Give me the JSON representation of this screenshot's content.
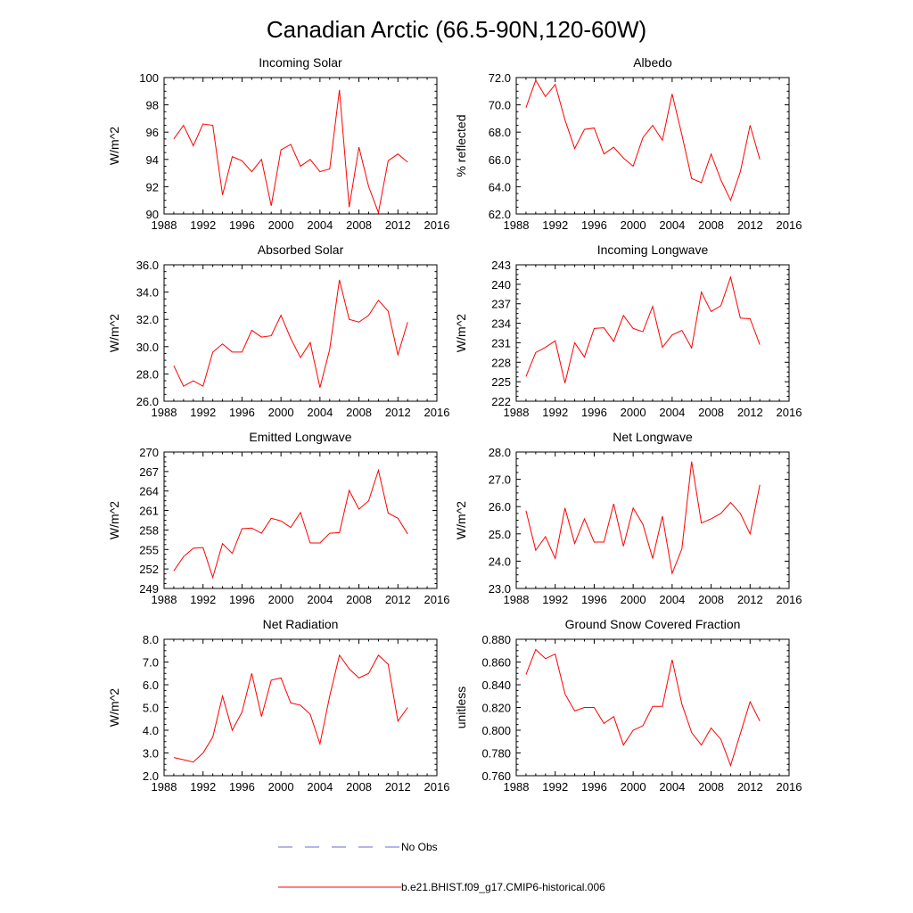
{
  "page_title": "Canadian Arctic (66.5-90N,120-60W)",
  "legend": [
    {
      "label": "No Obs",
      "color": "#6a6ad0",
      "dash": true
    },
    {
      "label": "b.e21.BHIST.f09_g17.CMIP6-historical.006",
      "color": "#ff0000",
      "dash": false
    }
  ],
  "chart_data": [
    {
      "type": "line",
      "title": "Incoming Solar",
      "ylabel": "W/m^2",
      "xlim": [
        1988,
        2016
      ],
      "xticks": [
        1988,
        1992,
        1996,
        2000,
        2004,
        2008,
        2012,
        2016
      ],
      "xticklabels": [
        "1988",
        "1992",
        "1996",
        "2000",
        "2004",
        "2008",
        "2012",
        "2016"
      ],
      "ylim": [
        90,
        100
      ],
      "yticks": [
        90,
        92,
        94,
        96,
        98,
        100
      ],
      "yticklabels": [
        "90",
        "92",
        "94",
        "96",
        "98",
        "100"
      ],
      "grid": false,
      "x": [
        1989,
        1990,
        1991,
        1992,
        1993,
        1994,
        1995,
        1996,
        1997,
        1998,
        1999,
        2000,
        2001,
        2002,
        2003,
        2004,
        2005,
        2006,
        2007,
        2008,
        2009,
        2010,
        2011,
        2012,
        2013
      ],
      "series": [
        {
          "name": "b.e21.BHIST.f09_g17.CMIP6-historical.006",
          "color": "#ff0000",
          "values": [
            95.5,
            96.5,
            95.0,
            96.6,
            96.5,
            91.4,
            94.2,
            93.9,
            93.1,
            94.0,
            90.6,
            94.7,
            95.1,
            93.5,
            94.0,
            93.1,
            93.3,
            99.1,
            90.5,
            94.9,
            92.0,
            90.1,
            93.9,
            94.4,
            93.8
          ]
        }
      ]
    },
    {
      "type": "line",
      "title": "Albedo",
      "ylabel": "% reflected",
      "xlim": [
        1988,
        2016
      ],
      "xticks": [
        1988,
        1992,
        1996,
        2000,
        2004,
        2008,
        2012,
        2016
      ],
      "xticklabels": [
        "1988",
        "1992",
        "1996",
        "2000",
        "2004",
        "2008",
        "2012",
        "2016"
      ],
      "ylim": [
        62,
        72
      ],
      "yticks": [
        62,
        64,
        66,
        68,
        70,
        72
      ],
      "yticklabels": [
        "62.0",
        "64.0",
        "66.0",
        "68.0",
        "70.0",
        "72.0"
      ],
      "grid": false,
      "x": [
        1989,
        1990,
        1991,
        1992,
        1993,
        1994,
        1995,
        1996,
        1997,
        1998,
        1999,
        2000,
        2001,
        2002,
        2003,
        2004,
        2005,
        2006,
        2007,
        2008,
        2009,
        2010,
        2011,
        2012,
        2013
      ],
      "series": [
        {
          "name": "b.e21.BHIST.f09_g17.CMIP6-historical.006",
          "color": "#ff0000",
          "values": [
            69.8,
            71.8,
            70.6,
            71.5,
            68.9,
            66.8,
            68.2,
            68.3,
            66.4,
            66.9,
            66.1,
            65.5,
            67.6,
            68.5,
            67.4,
            70.8,
            67.8,
            64.6,
            64.3,
            66.4,
            64.5,
            63.0,
            65.1,
            68.5,
            66.0
          ]
        }
      ]
    },
    {
      "type": "line",
      "title": "Absorbed Solar",
      "ylabel": "W/m^2",
      "xlim": [
        1988,
        2016
      ],
      "xticks": [
        1988,
        1992,
        1996,
        2000,
        2004,
        2008,
        2012,
        2016
      ],
      "xticklabels": [
        "1988",
        "1992",
        "1996",
        "2000",
        "2004",
        "2008",
        "2012",
        "2016"
      ],
      "ylim": [
        26,
        36
      ],
      "yticks": [
        26,
        28,
        30,
        32,
        34,
        36
      ],
      "yticklabels": [
        "26.0",
        "28.0",
        "30.0",
        "32.0",
        "34.0",
        "36.0"
      ],
      "grid": false,
      "x": [
        1989,
        1990,
        1991,
        1992,
        1993,
        1994,
        1995,
        1996,
        1997,
        1998,
        1999,
        2000,
        2001,
        2002,
        2003,
        2004,
        2005,
        2006,
        2007,
        2008,
        2009,
        2010,
        2011,
        2012,
        2013
      ],
      "series": [
        {
          "name": "b.e21.BHIST.f09_g17.CMIP6-historical.006",
          "color": "#ff0000",
          "values": [
            28.6,
            27.1,
            27.5,
            27.1,
            29.6,
            30.2,
            29.6,
            29.6,
            31.2,
            30.7,
            30.8,
            32.3,
            30.6,
            29.2,
            30.3,
            27.0,
            29.8,
            34.9,
            32.0,
            31.8,
            32.3,
            33.4,
            32.6,
            29.4,
            31.8
          ]
        }
      ]
    },
    {
      "type": "line",
      "title": "Incoming Longwave",
      "ylabel": "W/m^2",
      "xlim": [
        1988,
        2016
      ],
      "xticks": [
        1988,
        1992,
        1996,
        2000,
        2004,
        2008,
        2012,
        2016
      ],
      "xticklabels": [
        "1988",
        "1992",
        "1996",
        "2000",
        "2004",
        "2008",
        "2012",
        "2016"
      ],
      "ylim": [
        222,
        243
      ],
      "yticks": [
        222,
        225,
        228,
        231,
        234,
        237,
        240,
        243
      ],
      "yticklabels": [
        "222",
        "225",
        "228",
        "231",
        "234",
        "237",
        "240",
        "243"
      ],
      "grid": false,
      "x": [
        1989,
        1990,
        1991,
        1992,
        1993,
        1994,
        1995,
        1996,
        1997,
        1998,
        1999,
        2000,
        2001,
        2002,
        2003,
        2004,
        2005,
        2006,
        2007,
        2008,
        2009,
        2010,
        2011,
        2012,
        2013
      ],
      "series": [
        {
          "name": "b.e21.BHIST.f09_g17.CMIP6-historical.006",
          "color": "#ff0000",
          "values": [
            225.8,
            229.5,
            230.3,
            231.3,
            224.8,
            231.0,
            228.8,
            233.2,
            233.3,
            231.2,
            235.2,
            233.2,
            232.7,
            236.6,
            230.3,
            232.2,
            232.9,
            230.2,
            238.8,
            235.8,
            236.7,
            241.1,
            234.8,
            234.7,
            230.7
          ]
        }
      ]
    },
    {
      "type": "line",
      "title": "Emitted Longwave",
      "ylabel": "W/m^2",
      "xlim": [
        1988,
        2016
      ],
      "xticks": [
        1988,
        1992,
        1996,
        2000,
        2004,
        2008,
        2012,
        2016
      ],
      "xticklabels": [
        "1988",
        "1992",
        "1996",
        "2000",
        "2004",
        "2008",
        "2012",
        "2016"
      ],
      "ylim": [
        249,
        270
      ],
      "yticks": [
        249,
        252,
        255,
        258,
        261,
        264,
        267,
        270
      ],
      "yticklabels": [
        "249",
        "252",
        "255",
        "258",
        "261",
        "264",
        "267",
        "270"
      ],
      "grid": false,
      "x": [
        1989,
        1990,
        1991,
        1992,
        1993,
        1994,
        1995,
        1996,
        1997,
        1998,
        1999,
        2000,
        2001,
        2002,
        2003,
        2004,
        2005,
        2006,
        2007,
        2008,
        2009,
        2010,
        2011,
        2012,
        2013
      ],
      "series": [
        {
          "name": "b.e21.BHIST.f09_g17.CMIP6-historical.006",
          "color": "#ff0000",
          "values": [
            251.7,
            253.9,
            255.2,
            255.3,
            250.7,
            255.9,
            254.4,
            258.2,
            258.3,
            257.5,
            259.8,
            259.4,
            258.4,
            260.7,
            256.0,
            256.0,
            257.5,
            257.6,
            264.1,
            261.2,
            262.5,
            267.2,
            260.6,
            259.8,
            257.4
          ]
        }
      ]
    },
    {
      "type": "line",
      "title": "Net Longwave",
      "ylabel": "W/m^2",
      "xlim": [
        1988,
        2016
      ],
      "xticks": [
        1988,
        1992,
        1996,
        2000,
        2004,
        2008,
        2012,
        2016
      ],
      "xticklabels": [
        "1988",
        "1992",
        "1996",
        "2000",
        "2004",
        "2008",
        "2012",
        "2016"
      ],
      "ylim": [
        23,
        28
      ],
      "yticks": [
        23,
        24,
        25,
        26,
        27,
        28
      ],
      "yticklabels": [
        "23.0",
        "24.0",
        "25.0",
        "26.0",
        "27.0",
        "28.0"
      ],
      "grid": false,
      "x": [
        1989,
        1990,
        1991,
        1992,
        1993,
        1994,
        1995,
        1996,
        1997,
        1998,
        1999,
        2000,
        2001,
        2002,
        2003,
        2004,
        2005,
        2006,
        2007,
        2008,
        2009,
        2010,
        2011,
        2012,
        2013
      ],
      "series": [
        {
          "name": "b.e21.BHIST.f09_g17.CMIP6-historical.006",
          "color": "#ff0000",
          "values": [
            25.85,
            24.4,
            24.9,
            24.1,
            25.95,
            24.65,
            25.55,
            24.7,
            24.7,
            26.1,
            24.55,
            25.95,
            25.35,
            24.1,
            25.65,
            23.55,
            24.45,
            27.65,
            25.4,
            25.55,
            25.75,
            26.15,
            25.75,
            25.0,
            26.8
          ]
        }
      ]
    },
    {
      "type": "line",
      "title": "Net Radiation",
      "ylabel": "W/m^2",
      "xlim": [
        1988,
        2016
      ],
      "xticks": [
        1988,
        1992,
        1996,
        2000,
        2004,
        2008,
        2012,
        2016
      ],
      "xticklabels": [
        "1988",
        "1992",
        "1996",
        "2000",
        "2004",
        "2008",
        "2012",
        "2016"
      ],
      "ylim": [
        2,
        8
      ],
      "yticks": [
        2,
        3,
        4,
        5,
        6,
        7,
        8
      ],
      "yticklabels": [
        "2.0",
        "3.0",
        "4.0",
        "5.0",
        "6.0",
        "7.0",
        "8.0"
      ],
      "grid": false,
      "x": [
        1989,
        1990,
        1991,
        1992,
        1993,
        1994,
        1995,
        1996,
        1997,
        1998,
        1999,
        2000,
        2001,
        2002,
        2003,
        2004,
        2005,
        2006,
        2007,
        2008,
        2009,
        2010,
        2011,
        2012,
        2013
      ],
      "series": [
        {
          "name": "b.e21.BHIST.f09_g17.CMIP6-historical.006",
          "color": "#ff0000",
          "values": [
            2.8,
            2.7,
            2.6,
            3.0,
            3.7,
            5.5,
            4.0,
            4.8,
            6.5,
            4.6,
            6.2,
            6.3,
            5.2,
            5.1,
            4.7,
            3.4,
            5.5,
            7.3,
            6.7,
            6.3,
            6.5,
            7.3,
            6.9,
            4.4,
            5.0
          ]
        }
      ]
    },
    {
      "type": "line",
      "title": "Ground Snow Covered Fraction",
      "ylabel": "unitless",
      "xlim": [
        1988,
        2016
      ],
      "xticks": [
        1988,
        1992,
        1996,
        2000,
        2004,
        2008,
        2012,
        2016
      ],
      "xticklabels": [
        "1988",
        "1992",
        "1996",
        "2000",
        "2004",
        "2008",
        "2012",
        "2016"
      ],
      "ylim": [
        0.76,
        0.88
      ],
      "yticks": [
        0.76,
        0.78,
        0.8,
        0.82,
        0.84,
        0.86,
        0.88
      ],
      "yticklabels": [
        "0.760",
        "0.780",
        "0.800",
        "0.820",
        "0.840",
        "0.860",
        "0.880"
      ],
      "grid": false,
      "x": [
        1989,
        1990,
        1991,
        1992,
        1993,
        1994,
        1995,
        1996,
        1997,
        1998,
        1999,
        2000,
        2001,
        2002,
        2003,
        2004,
        2005,
        2006,
        2007,
        2008,
        2009,
        2010,
        2011,
        2012,
        2013
      ],
      "series": [
        {
          "name": "b.e21.BHIST.f09_g17.CMIP6-historical.006",
          "color": "#ff0000",
          "values": [
            0.849,
            0.871,
            0.863,
            0.867,
            0.832,
            0.817,
            0.82,
            0.82,
            0.806,
            0.812,
            0.787,
            0.8,
            0.804,
            0.821,
            0.821,
            0.862,
            0.823,
            0.798,
            0.787,
            0.802,
            0.792,
            0.769,
            0.797,
            0.825,
            0.808
          ]
        }
      ]
    }
  ]
}
